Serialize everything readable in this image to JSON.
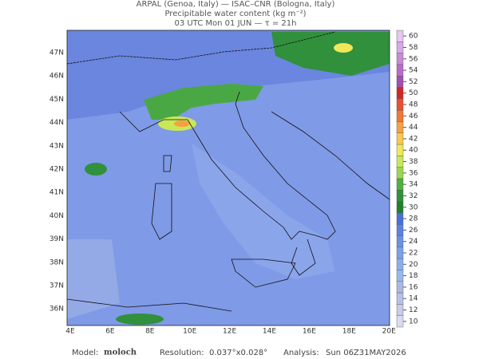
{
  "header": {
    "line1": "ARPAL (Genoa, Italy)  —  ISAC–CNR (Bologna, Italy)",
    "line2": "Precipitable water content (kg m⁻²)",
    "line3": "03 UTC Mon 01 JUN  —  τ = 21h"
  },
  "map": {
    "lat_labels": [
      "47N",
      "46N",
      "45N",
      "44N",
      "43N",
      "42N",
      "41N",
      "40N",
      "39N",
      "38N",
      "37N",
      "36N"
    ],
    "lon_labels": [
      "4E",
      "6E",
      "8E",
      "10E",
      "12E",
      "14E",
      "16E",
      "18E",
      "20E"
    ]
  },
  "colorbar": {
    "ticks": [
      60,
      58,
      56,
      54,
      52,
      50,
      48,
      46,
      44,
      42,
      40,
      38,
      36,
      34,
      32,
      30,
      28,
      26,
      24,
      22,
      20,
      18,
      16,
      14,
      12,
      10
    ],
    "colors": [
      "#e4c8f0",
      "#d7a8e8",
      "#c98ad8",
      "#b86cc8",
      "#a050b0",
      "#d02828",
      "#e85030",
      "#f07838",
      "#f8a040",
      "#f8c850",
      "#f0e858",
      "#c8e858",
      "#98d850",
      "#50b040",
      "#30903c",
      "#208030",
      "#4a70d8",
      "#5a82e0",
      "#6a92e4",
      "#7aa2e8",
      "#8ab0ec",
      "#9ab8ec",
      "#aab8e4",
      "#b8c0e4",
      "#c8cce8",
      "#d8dcec"
    ]
  },
  "footer": {
    "model_label": "Model:",
    "model": "moloch",
    "resolution_label": "Resolution:",
    "resolution": "0.037°x0.028°",
    "analysis_label": "Analysis:",
    "analysis": "Sun 06Z31MAY2026"
  }
}
